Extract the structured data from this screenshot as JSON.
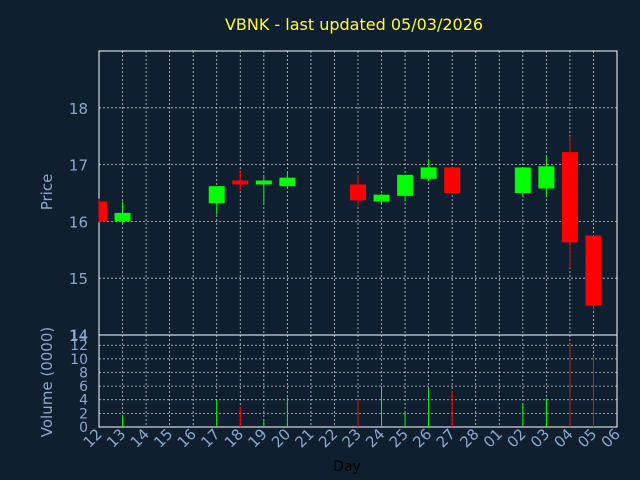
{
  "chart_data": {
    "type": "candlestick",
    "title": "VBNK - last updated 05/03/2026",
    "xlabel": "Day",
    "ylabel_price": "Price",
    "ylabel_volume": "Volume (0000)",
    "x_tick_labels": [
      "12",
      "13",
      "14",
      "15",
      "16",
      "17",
      "18",
      "19",
      "20",
      "21",
      "22",
      "23",
      "24",
      "25",
      "26",
      "27",
      "28",
      "01",
      "02",
      "03",
      "04",
      "05",
      "06"
    ],
    "price_ticks": [
      "14",
      "15",
      "16",
      "17",
      "18"
    ],
    "volume_ticks": [
      "0",
      "2",
      "4",
      "6",
      "8",
      "10",
      "12"
    ],
    "price_ylim": [
      14,
      19
    ],
    "volume_ylim": [
      0,
      13.5
    ],
    "grid": true,
    "candles": [
      {
        "day": "12",
        "open": 16.35,
        "high": 16.4,
        "low": 15.98,
        "close": 16.0,
        "volume": 0
      },
      {
        "day": "13",
        "open": 16.0,
        "high": 16.35,
        "low": 15.95,
        "close": 16.15,
        "volume": 1.8
      },
      {
        "day": "17",
        "open": 16.32,
        "high": 16.62,
        "low": 16.12,
        "close": 16.62,
        "volume": 3.9
      },
      {
        "day": "18",
        "open": 16.72,
        "high": 16.9,
        "low": 16.55,
        "close": 16.65,
        "volume": 3.0
      },
      {
        "day": "19",
        "open": 16.65,
        "high": 16.78,
        "low": 16.32,
        "close": 16.72,
        "volume": 1.2
      },
      {
        "day": "20",
        "open": 16.62,
        "high": 16.85,
        "low": 16.6,
        "close": 16.77,
        "volume": 4.3
      },
      {
        "day": "23",
        "open": 16.65,
        "high": 16.82,
        "low": 16.27,
        "close": 16.37,
        "volume": 4.0
      },
      {
        "day": "24",
        "open": 16.35,
        "high": 16.48,
        "low": 16.32,
        "close": 16.47,
        "volume": 6.0
      },
      {
        "day": "25",
        "open": 16.45,
        "high": 16.82,
        "low": 16.35,
        "close": 16.82,
        "volume": 2.2
      },
      {
        "day": "26",
        "open": 16.75,
        "high": 17.1,
        "low": 16.7,
        "close": 16.95,
        "volume": 5.7
      },
      {
        "day": "27",
        "open": 16.95,
        "high": 16.95,
        "low": 16.5,
        "close": 16.5,
        "volume": 5.3
      },
      {
        "day": "02",
        "open": 16.5,
        "high": 16.95,
        "low": 16.42,
        "close": 16.95,
        "volume": 3.5
      },
      {
        "day": "03",
        "open": 16.58,
        "high": 17.15,
        "low": 16.42,
        "close": 16.97,
        "volume": 4.2
      },
      {
        "day": "04",
        "open": 17.22,
        "high": 17.5,
        "low": 15.18,
        "close": 15.63,
        "volume": 12.2
      },
      {
        "day": "05",
        "open": 15.75,
        "high": 15.75,
        "low": 14.45,
        "close": 14.52,
        "volume": 10.4
      }
    ]
  },
  "colors": {
    "background": "#0f1f30",
    "axes": "#ffffff",
    "grid": "#c8c8c8",
    "up": "#00ff00",
    "down": "#ff0000",
    "tick_text": "#8aa8cc",
    "title": "#ffff33"
  }
}
